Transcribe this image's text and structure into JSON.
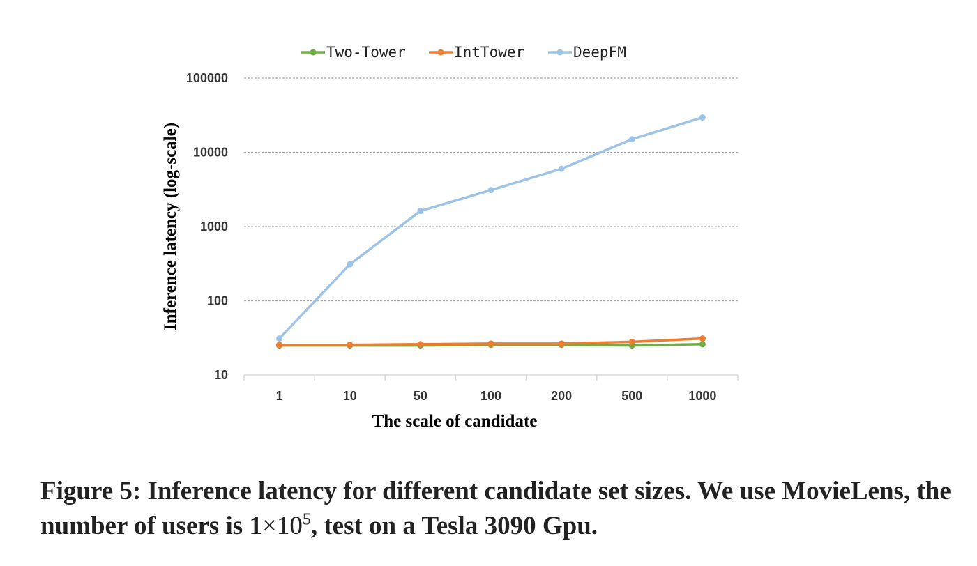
{
  "chart_data": {
    "type": "line",
    "title": "",
    "xlabel": "The scale of candidate",
    "ylabel": "Inference latency (log-scale)",
    "y_scale": "log",
    "ylim": [
      10,
      100000
    ],
    "y_ticks": [
      "10",
      "100",
      "1000",
      "10000",
      "100000"
    ],
    "categories": [
      "1",
      "10",
      "50",
      "100",
      "200",
      "500",
      "1000"
    ],
    "grid": "horizontal dashed",
    "legend_position": "top",
    "series": [
      {
        "name": "Two-Tower",
        "color": "#70ad47",
        "values": [
          25,
          25,
          25,
          25.5,
          25.5,
          25,
          26
        ]
      },
      {
        "name": "IntTower",
        "color": "#ed7d31",
        "values": [
          25.5,
          25.5,
          26,
          26.5,
          26.5,
          28,
          31
        ]
      },
      {
        "name": "DeepFM",
        "color": "#9dc3e6",
        "values": [
          31,
          310,
          1620,
          3100,
          6000,
          15000,
          29500
        ]
      }
    ]
  },
  "caption": {
    "label": "Figure 5:",
    "text1": " Inference latency for different candidate set sizes. We use MovieLens, the number of users is 1",
    "times": "×10",
    "exponent": "5",
    "text2": ", test on a Tesla 3090 Gpu."
  }
}
